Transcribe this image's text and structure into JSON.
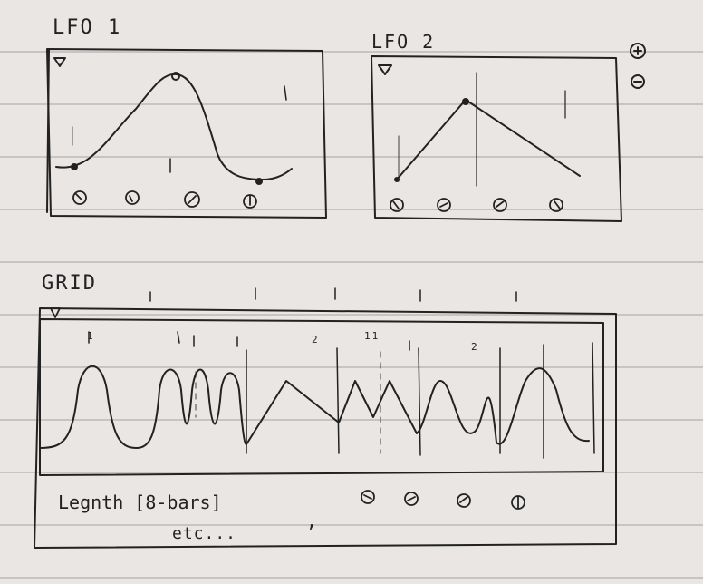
{
  "lfo1": {
    "title": "LFO 1",
    "triangle_icon": "triangle-down-icon",
    "knobs": [
      "knob",
      "knob",
      "knob",
      "knob"
    ]
  },
  "lfo2": {
    "title": "LFO 2",
    "triangle_icon": "triangle-down-icon",
    "knobs": [
      "knob",
      "knob",
      "knob",
      "knob"
    ]
  },
  "controls": {
    "add_icon": "plus-circle-icon",
    "remove_icon": "minus-circle-icon"
  },
  "grid": {
    "title": "GRID",
    "triangle_icon": "triangle-down-icon",
    "markers": [
      "1",
      "2",
      "11",
      "2"
    ],
    "length_label": "Legnth [8-bars]",
    "etc_label": "etc...",
    "comma": ",",
    "knobs": [
      "knob",
      "knob",
      "knob",
      "knob"
    ]
  },
  "colors": {
    "ink": "#222222",
    "paper": "#e9e6e4",
    "lines": "#c9c3c2"
  }
}
